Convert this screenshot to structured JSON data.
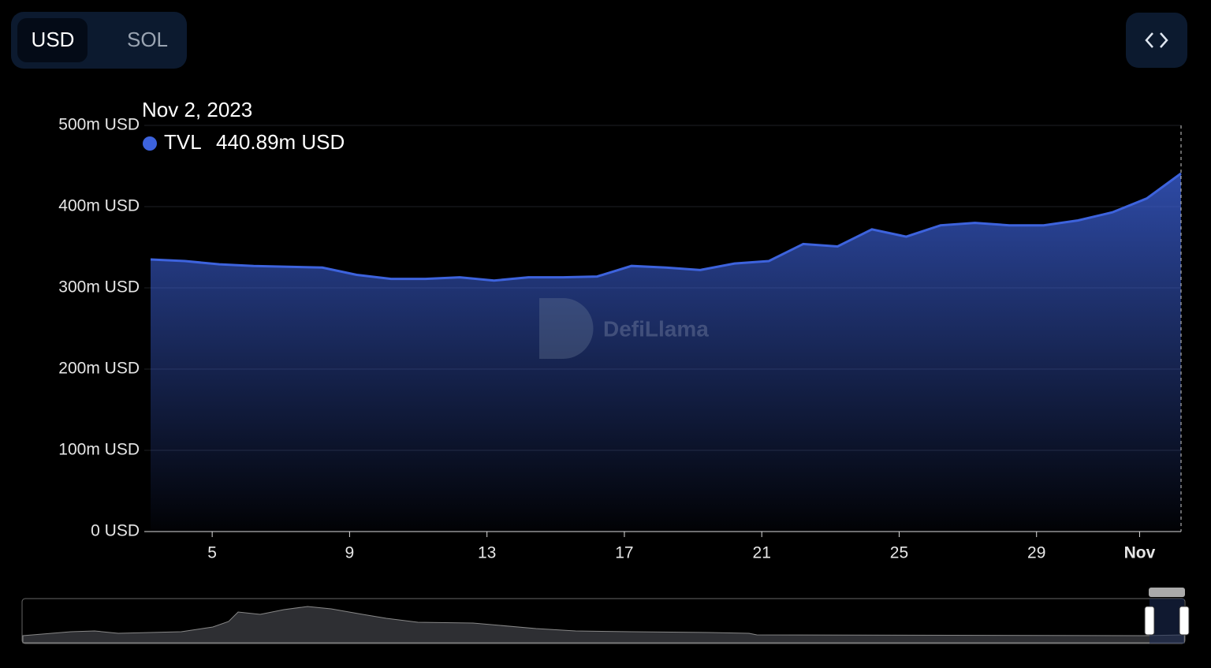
{
  "buttons": {
    "currency": [
      "USD",
      "SOL"
    ]
  },
  "watermark": "DefiLlama",
  "chart_data": {
    "type": "area",
    "categories": [
      null,
      null,
      "5",
      null,
      null,
      null,
      "9",
      null,
      null,
      null,
      "13",
      null,
      null,
      null,
      "17",
      null,
      null,
      null,
      "21",
      null,
      null,
      null,
      "25",
      null,
      null,
      null,
      "29",
      null,
      null,
      "Nov",
      null
    ],
    "series": [
      {
        "name": "TVL",
        "color": "#3d63dd",
        "values": [
          335,
          333,
          329,
          327,
          326,
          325,
          316,
          311,
          311,
          313,
          309,
          313,
          313,
          314,
          327,
          325,
          322,
          330,
          333,
          354,
          351,
          372,
          363,
          377,
          380,
          377,
          377,
          383,
          393,
          410,
          440.89
        ]
      }
    ],
    "tooltip": {
      "date": "Nov 2, 2023",
      "value_label": "440.89m USD"
    },
    "ylim": [
      0,
      500
    ],
    "yticks": [
      {
        "value": 0,
        "label": "0 USD"
      },
      {
        "value": 100,
        "label": "100m USD"
      },
      {
        "value": 200,
        "label": "200m USD"
      },
      {
        "value": 300,
        "label": "300m USD"
      },
      {
        "value": 400,
        "label": "400m USD"
      },
      {
        "value": 500,
        "label": "500m USD"
      }
    ],
    "grid": true
  }
}
